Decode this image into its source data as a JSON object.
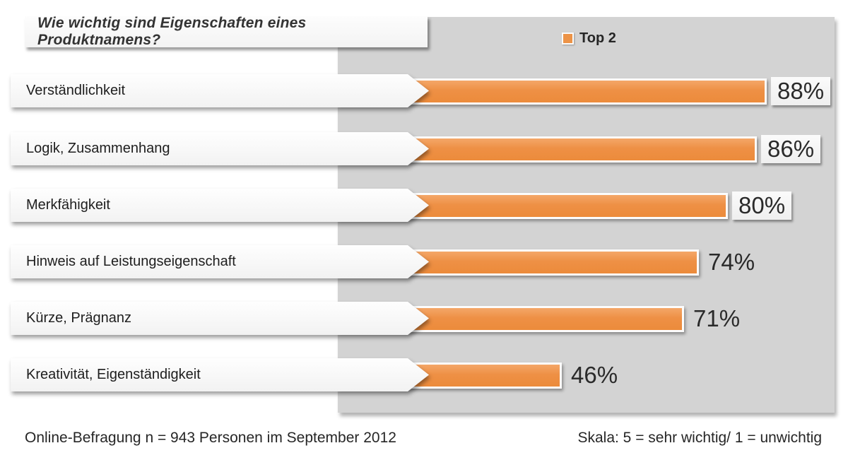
{
  "title": "Wie wichtig sind Eigenschaften eines Produktnamens?",
  "legend": {
    "label": "Top 2",
    "color": "#ec9347"
  },
  "chart_data": {
    "type": "bar",
    "orientation": "horizontal",
    "title": "Wie wichtig sind Eigenschaften eines Produktnamens?",
    "series_name": "Top 2",
    "categories": [
      "Verständlichkeit",
      "Logik, Zusammenhang",
      "Merkfähigkeit",
      "Hinweis auf Leistungseigenschaft",
      "Kürze, Prägnanz",
      "Kreativität, Eigenständigkeit"
    ],
    "values": [
      88,
      86,
      80,
      74,
      71,
      46
    ],
    "unit": "%",
    "value_labels": [
      "88%",
      "86%",
      "80%",
      "74%",
      "71%",
      "46%"
    ],
    "boxed_value_labels": [
      true,
      true,
      true,
      false,
      false,
      false
    ],
    "xlim": [
      0,
      100
    ],
    "grid": false,
    "legend_position": "top",
    "bar_color": "#ec9347",
    "plot_background": "#d3d3d3"
  },
  "footer": {
    "left": "Online-Befragung n = 943 Personen im September 2012",
    "right": "Skala: 5 = sehr wichtig/ 1 = unwichtig"
  }
}
